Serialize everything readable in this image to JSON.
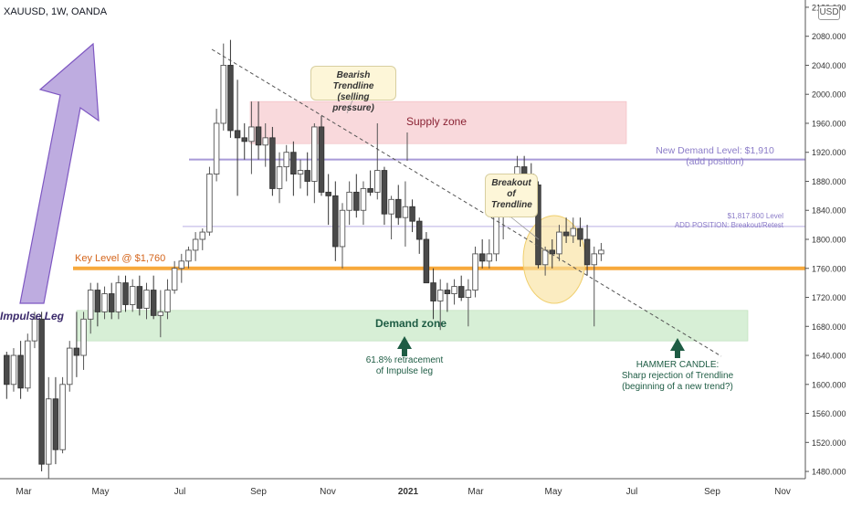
{
  "symbol": "XAUUSD, 1W, OANDA",
  "currency_badge": "USD",
  "colors": {
    "bull_fill": "#ffffff",
    "bull_border": "#555555",
    "bear_fill": "#4a4a4a",
    "bear_border": "#333333",
    "key_level": "#f7a93c",
    "demand_line": "#a89ad8",
    "supply_zone": "#f9d9dc",
    "demand_zone": "#d7efd6",
    "impulse_arrow": "#b39ddb",
    "circle": "#f9e2a0",
    "green_arrow": "#1e5c44",
    "axis_text": "#333333"
  },
  "chart_data": {
    "type": "candlestick",
    "title": "XAUUSD, 1W, OANDA",
    "ylim": [
      1470,
      2130
    ],
    "y_ticks": [
      "2120.000",
      "2080.000",
      "2040.000",
      "2000.000",
      "1960.000",
      "1920.000",
      "1880.000",
      "1840.000",
      "1800.000",
      "1760.000",
      "1720.000",
      "1680.000",
      "1640.000",
      "1600.000",
      "1560.000",
      "1520.000",
      "1480.000"
    ],
    "x_ticks": [
      "Mar",
      "May",
      "Jul",
      "Sep",
      "Nov",
      "2021",
      "Mar",
      "May",
      "Jul",
      "Sep",
      "Nov"
    ],
    "candles": [
      [
        1640,
        1645,
        1580,
        1600
      ],
      [
        1600,
        1650,
        1590,
        1640
      ],
      [
        1640,
        1660,
        1580,
        1595
      ],
      [
        1595,
        1670,
        1590,
        1660
      ],
      [
        1660,
        1700,
        1650,
        1690
      ],
      [
        1690,
        1700,
        1480,
        1490
      ],
      [
        1490,
        1610,
        1470,
        1580
      ],
      [
        1580,
        1610,
        1490,
        1510
      ],
      [
        1510,
        1610,
        1505,
        1600
      ],
      [
        1600,
        1660,
        1590,
        1650
      ],
      [
        1650,
        1700,
        1610,
        1640
      ],
      [
        1640,
        1700,
        1620,
        1690
      ],
      [
        1690,
        1740,
        1670,
        1730
      ],
      [
        1730,
        1740,
        1680,
        1700
      ],
      [
        1700,
        1735,
        1690,
        1725
      ],
      [
        1725,
        1740,
        1690,
        1700
      ],
      [
        1700,
        1750,
        1690,
        1740
      ],
      [
        1740,
        1750,
        1700,
        1710
      ],
      [
        1710,
        1745,
        1700,
        1735
      ],
      [
        1735,
        1750,
        1695,
        1705
      ],
      [
        1705,
        1740,
        1690,
        1730
      ],
      [
        1730,
        1750,
        1690,
        1695
      ],
      [
        1695,
        1730,
        1665,
        1700
      ],
      [
        1700,
        1745,
        1690,
        1730
      ],
      [
        1730,
        1770,
        1725,
        1760
      ],
      [
        1760,
        1780,
        1740,
        1770
      ],
      [
        1770,
        1790,
        1760,
        1785
      ],
      [
        1785,
        1810,
        1770,
        1800
      ],
      [
        1800,
        1815,
        1785,
        1810
      ],
      [
        1810,
        1900,
        1805,
        1890
      ],
      [
        1890,
        1980,
        1880,
        1960
      ],
      [
        1960,
        2070,
        1950,
        2040
      ],
      [
        2040,
        2075,
        1940,
        1950
      ],
      [
        1950,
        2020,
        1860,
        1940
      ],
      [
        1940,
        1960,
        1910,
        1935
      ],
      [
        1935,
        1990,
        1890,
        1955
      ],
      [
        1955,
        1990,
        1910,
        1930
      ],
      [
        1930,
        1960,
        1900,
        1940
      ],
      [
        1940,
        1955,
        1860,
        1870
      ],
      [
        1870,
        1920,
        1850,
        1900
      ],
      [
        1900,
        1930,
        1880,
        1920
      ],
      [
        1920,
        1935,
        1860,
        1890
      ],
      [
        1890,
        1910,
        1870,
        1895
      ],
      [
        1895,
        1920,
        1860,
        1880
      ],
      [
        1880,
        1960,
        1850,
        1955
      ],
      [
        1955,
        1970,
        1860,
        1865
      ],
      [
        1865,
        1890,
        1820,
        1860
      ],
      [
        1860,
        1880,
        1770,
        1790
      ],
      [
        1790,
        1850,
        1760,
        1840
      ],
      [
        1840,
        1880,
        1820,
        1865
      ],
      [
        1865,
        1890,
        1830,
        1840
      ],
      [
        1840,
        1880,
        1820,
        1870
      ],
      [
        1870,
        1895,
        1860,
        1865
      ],
      [
        1865,
        1960,
        1855,
        1895
      ],
      [
        1895,
        1900,
        1820,
        1835
      ],
      [
        1835,
        1860,
        1800,
        1855
      ],
      [
        1855,
        1875,
        1820,
        1830
      ],
      [
        1830,
        1880,
        1790,
        1845
      ],
      [
        1845,
        1855,
        1810,
        1825
      ],
      [
        1825,
        1830,
        1780,
        1800
      ],
      [
        1800,
        1810,
        1740,
        1740
      ],
      [
        1740,
        1760,
        1690,
        1715
      ],
      [
        1715,
        1745,
        1675,
        1730
      ],
      [
        1730,
        1740,
        1700,
        1725
      ],
      [
        1725,
        1745,
        1710,
        1735
      ],
      [
        1735,
        1750,
        1715,
        1720
      ],
      [
        1720,
        1745,
        1680,
        1730
      ],
      [
        1730,
        1790,
        1720,
        1780
      ],
      [
        1780,
        1800,
        1760,
        1770
      ],
      [
        1770,
        1800,
        1760,
        1780
      ],
      [
        1780,
        1850,
        1770,
        1835
      ],
      [
        1835,
        1845,
        1800,
        1840
      ],
      [
        1840,
        1880,
        1830,
        1875
      ],
      [
        1875,
        1915,
        1865,
        1900
      ],
      [
        1900,
        1915,
        1880,
        1890
      ],
      [
        1890,
        1905,
        1860,
        1875
      ],
      [
        1875,
        1880,
        1760,
        1765
      ],
      [
        1765,
        1790,
        1750,
        1785
      ],
      [
        1785,
        1800,
        1760,
        1780
      ],
      [
        1780,
        1820,
        1770,
        1810
      ],
      [
        1810,
        1830,
        1795,
        1805
      ],
      [
        1805,
        1830,
        1795,
        1815
      ],
      [
        1815,
        1830,
        1790,
        1800
      ],
      [
        1800,
        1820,
        1750,
        1765
      ],
      [
        1765,
        1790,
        1680,
        1780
      ],
      [
        1780,
        1795,
        1770,
        1785
      ]
    ],
    "annotations": {
      "key_level": {
        "label": "Key Level @ $1,760",
        "price": 1760
      },
      "demand_level": {
        "label": "New Demand Level: $1,910\n(add position)",
        "price": 1910
      },
      "retest_level": {
        "label": "$1,817.800 Level\nADD POSITION: Breakout/Retest",
        "price": 1817.8
      },
      "supply_zone": {
        "label": "Supply zone",
        "low": 1932,
        "high": 1990
      },
      "demand_zone": {
        "label": "Demand zone",
        "low": 1660,
        "high": 1702
      },
      "impulse_leg": "Impulse Leg",
      "bearish_trendline": "Bearish Trendline\n(selling pressure)",
      "breakout": "Breakout\nof\nTrendline",
      "retracement": "61.8% retracement\nof Impulse leg",
      "hammer": "HAMMER CANDLE:\nSharp rejection of Trendline\n(beginning of a new trend?)"
    }
  }
}
